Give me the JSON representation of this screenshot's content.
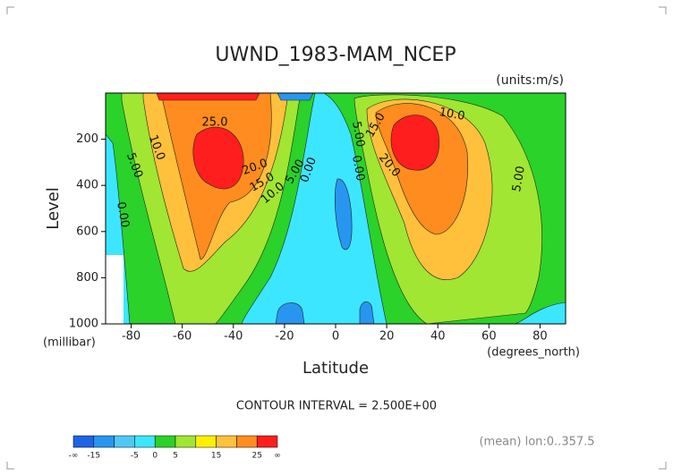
{
  "chart_data": {
    "type": "contour",
    "title": "UWND_1983-MAM_NCEP",
    "units": "(units:m/s)",
    "x_label": "Latitude",
    "y_label": "Level",
    "x_unit": "(degrees_north)",
    "y_unit": "(millibar)",
    "footnote": "CONTOUR INTERVAL = 2.500E+00",
    "note": "(mean) lon:0..357.5",
    "xlim": [
      -90,
      90
    ],
    "xticks": [
      -80,
      -60,
      -40,
      -20,
      0,
      20,
      40,
      60,
      80
    ],
    "ylim": [
      1000,
      0
    ],
    "yticks": [
      200,
      400,
      600,
      800,
      1000
    ],
    "contour_labels": [
      "25.0",
      "10.0",
      "5.00",
      "0.00",
      "20.0",
      "15.0",
      "10.0",
      "5.00",
      "0.00",
      "5.00",
      "15.0",
      "20.0",
      "10.0",
      "0.00",
      "5.00"
    ],
    "colorbar": {
      "levels": [
        -15,
        -10,
        -5,
        0,
        5,
        10,
        15,
        20,
        25
      ],
      "ticks": [
        -15,
        -5,
        0,
        5,
        15,
        25
      ],
      "low_label": "-∞",
      "high_label": "∞",
      "colors": [
        "#1e64e6",
        "#2896f0",
        "#50c8f5",
        "#3ce6ff",
        "#2ad22a",
        "#a0e632",
        "#fff000",
        "#ffc03c",
        "#ff8c1e",
        "#ff1e1e"
      ]
    }
  }
}
